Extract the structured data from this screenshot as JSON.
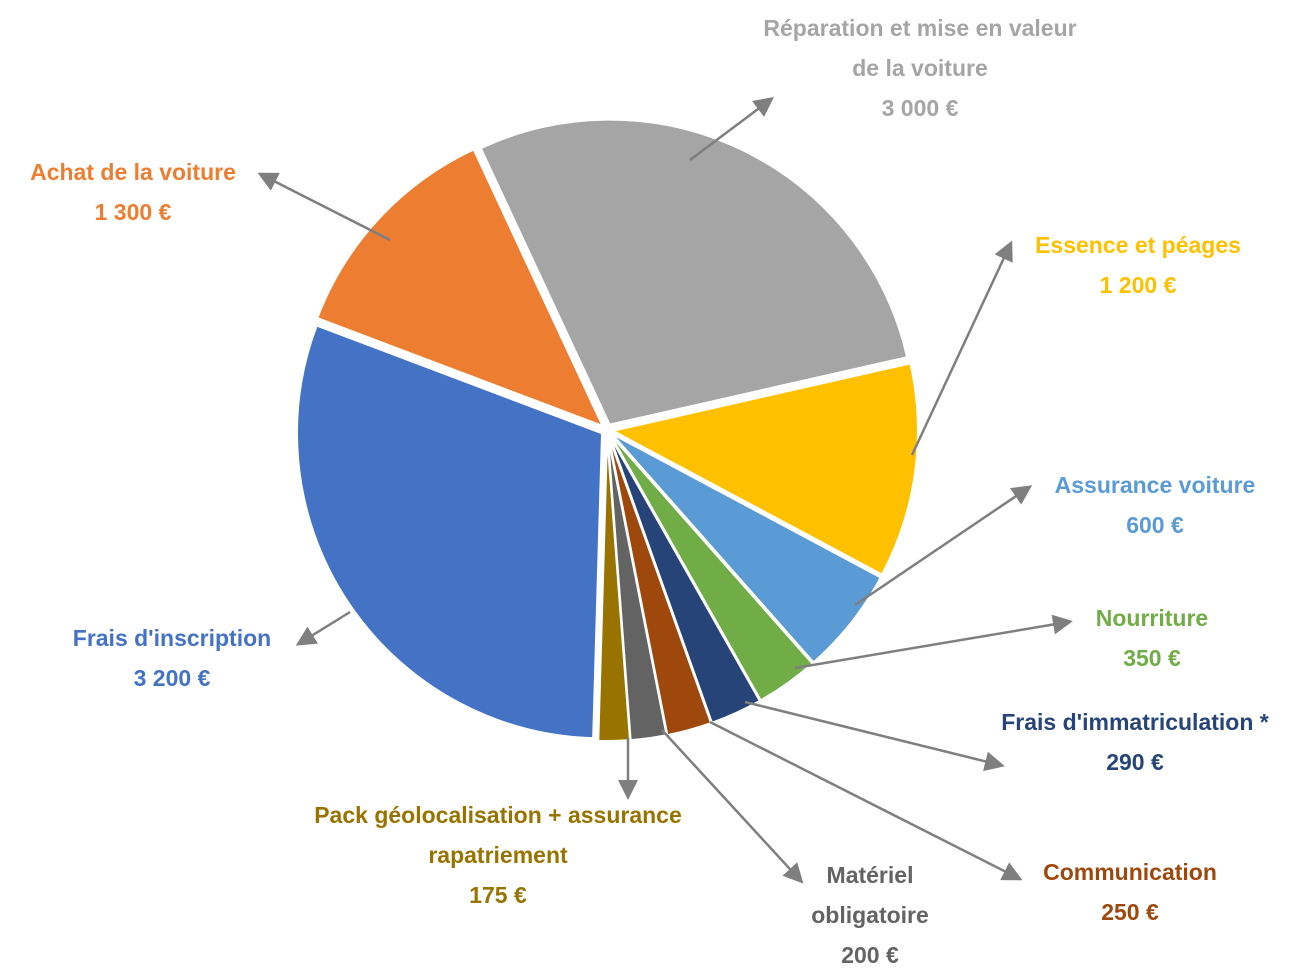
{
  "chart_data": {
    "type": "pie",
    "categories": [
      "Réparation et mise en valeur de la voiture",
      "Essence et péages",
      "Assurance voiture",
      "Nourriture",
      "Frais d'immatriculation *",
      "Communication",
      "Matériel obligatoire",
      "Pack géolocalisation + assurance rapatriement",
      "Frais d'inscription",
      "Achat de la voiture"
    ],
    "values": [
      3000,
      1200,
      600,
      350,
      290,
      250,
      200,
      175,
      3200,
      1300
    ],
    "value_labels": [
      "3 000 €",
      "1 200 €",
      "600 €",
      "350 €",
      "290 €",
      "250 €",
      "200 €",
      "175 €",
      "3 200 €",
      "1 300 €"
    ],
    "colors": [
      "#a5a5a5",
      "#ffc000",
      "#5b9bd5",
      "#70ad47",
      "#264478",
      "#9e480e",
      "#636363",
      "#997300",
      "#4472c4",
      "#ed7d31"
    ]
  }
}
